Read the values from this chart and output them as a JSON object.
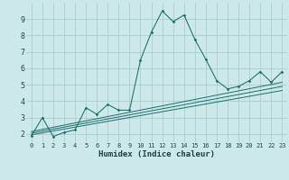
{
  "xlabel": "Humidex (Indice chaleur)",
  "bg_color": "#cce8e8",
  "grid_color": "#aacece",
  "line_color": "#1a6e6a",
  "xlim": [
    -0.5,
    23.5
  ],
  "ylim": [
    1.5,
    10.0
  ],
  "xticks": [
    0,
    1,
    2,
    3,
    4,
    5,
    6,
    7,
    8,
    9,
    10,
    11,
    12,
    13,
    14,
    15,
    16,
    17,
    18,
    19,
    20,
    21,
    22,
    23
  ],
  "yticks": [
    2,
    3,
    4,
    5,
    6,
    7,
    8,
    9
  ],
  "series": [
    [
      0,
      1.9
    ],
    [
      1,
      3.0
    ],
    [
      2,
      1.85
    ],
    [
      3,
      2.1
    ],
    [
      4,
      2.25
    ],
    [
      5,
      3.6
    ],
    [
      6,
      3.2
    ],
    [
      7,
      3.8
    ],
    [
      8,
      3.45
    ],
    [
      9,
      3.45
    ],
    [
      10,
      6.5
    ],
    [
      11,
      8.2
    ],
    [
      12,
      9.5
    ],
    [
      13,
      8.85
    ],
    [
      14,
      9.25
    ],
    [
      15,
      7.75
    ],
    [
      16,
      6.55
    ],
    [
      17,
      5.25
    ],
    [
      18,
      4.75
    ],
    [
      19,
      4.9
    ],
    [
      20,
      5.25
    ],
    [
      21,
      5.8
    ],
    [
      22,
      5.15
    ],
    [
      23,
      5.8
    ]
  ],
  "linear1": [
    [
      0,
      1.95
    ],
    [
      23,
      4.65
    ]
  ],
  "linear2": [
    [
      0,
      2.05
    ],
    [
      23,
      4.9
    ]
  ],
  "linear3": [
    [
      0,
      2.15
    ],
    [
      23,
      5.15
    ]
  ]
}
